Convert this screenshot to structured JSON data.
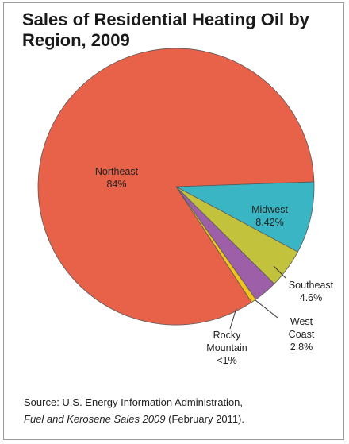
{
  "chart_data": {
    "type": "pie",
    "title": "Sales of Residential Heating Oil by Region, 2009",
    "slices": [
      {
        "label": "Northeast",
        "value": 84,
        "display": "84%",
        "color": "#e8624a"
      },
      {
        "label": "Midwest",
        "value": 8.42,
        "display": "8.42%",
        "color": "#3ab5c3"
      },
      {
        "label": "Southeast",
        "value": 4.6,
        "display": "4.6%",
        "color": "#c2c23d"
      },
      {
        "label": "West Coast",
        "value": 2.8,
        "display": "2.8%",
        "color": "#9d5fa8"
      },
      {
        "label": "Rocky Mountain",
        "value": 0.6,
        "display": "<1%",
        "color": "#f0c419"
      }
    ],
    "labels": {
      "northeast": {
        "name": "Northeast",
        "value": "84%"
      },
      "midwest": {
        "name": "Midwest",
        "value": "8.42%"
      },
      "southeast": {
        "name": "Southeast",
        "value": "4.6%"
      },
      "west_coast": {
        "line1": "West",
        "line2": "Coast",
        "value": "2.8%"
      },
      "rocky": {
        "line1": "Rocky",
        "line2": "Mountain",
        "value": "<1%"
      }
    }
  },
  "source": {
    "prefix": "Source: U.S. Energy Information Administration,",
    "title": "Fuel and Kerosene Sales 2009",
    "suffix": " (February 2011)."
  }
}
